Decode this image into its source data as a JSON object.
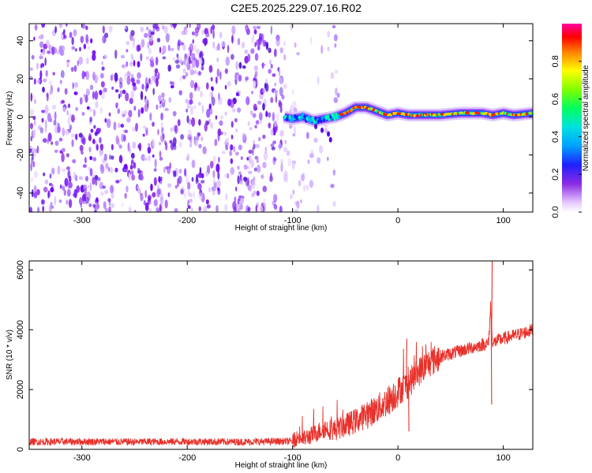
{
  "title": "C2E5.2025.229.07.16.R02",
  "chart_data": [
    {
      "type": "heatmap",
      "xlabel": "Height of straight line (km)",
      "ylabel": "Frequency (Hz)",
      "xlim": [
        -350,
        128
      ],
      "ylim": [
        -50,
        49
      ],
      "x_ticks": [
        -300,
        -200,
        -100,
        0,
        100
      ],
      "y_ticks": [
        -40,
        -20,
        0,
        20,
        40
      ],
      "colorbar": {
        "label": "Normalized spectral amplitude",
        "range": [
          0,
          1
        ],
        "ticks": [
          "0.0",
          "0.2",
          "0.4",
          "0.6",
          "0.8"
        ]
      },
      "regions": [
        {
          "x_range": [
            -350,
            -108
          ],
          "content": "broadband noise (low amplitude, violet)"
        },
        {
          "x_range": [
            -108,
            -55
          ],
          "content": "noise fading; signal appears near 0 Hz"
        },
        {
          "x_range": [
            -55,
            128
          ],
          "content": "narrow line near 0 Hz, high amplitude"
        }
      ],
      "signal_ridge": {
        "x": [
          -108,
          -100,
          -90,
          -80,
          -70,
          -60,
          -50,
          -40,
          -30,
          -20,
          -10,
          0,
          10,
          20,
          40,
          60,
          80,
          90,
          100,
          110,
          128
        ],
        "freq": [
          0,
          -1,
          0,
          -2,
          -1,
          0,
          2,
          5,
          5,
          3,
          1,
          2,
          1,
          1,
          1,
          2,
          2,
          1,
          2,
          1,
          2
        ]
      }
    },
    {
      "type": "line",
      "xlabel": "Height of straight line (km)",
      "ylabel": "SNR (10 * v/v)",
      "xlim": [
        -350,
        128
      ],
      "ylim": [
        0,
        6300
      ],
      "x_ticks": [
        -300,
        -200,
        -100,
        0,
        100
      ],
      "y_ticks": [
        0,
        2000,
        4000,
        6000
      ],
      "color": "#e8302a",
      "x": [
        -350,
        -300,
        -250,
        -200,
        -150,
        -100,
        -95,
        -90,
        -80,
        -70,
        -60,
        -50,
        -40,
        -30,
        -20,
        -10,
        0,
        10,
        20,
        30,
        40,
        50,
        60,
        70,
        80,
        86,
        88,
        90,
        92,
        95,
        100,
        110,
        120,
        128
      ],
      "y": [
        250,
        260,
        250,
        260,
        250,
        270,
        400,
        350,
        500,
        700,
        650,
        800,
        950,
        1150,
        1350,
        1600,
        1950,
        2200,
        2600,
        2900,
        3100,
        3200,
        3300,
        3400,
        3500,
        3550,
        4800,
        3500,
        3600,
        3650,
        3700,
        3800,
        3900,
        4000
      ],
      "spikes": [
        {
          "x": 8,
          "y": 3700
        },
        {
          "x": 10,
          "y": 600
        },
        {
          "x": 88,
          "y": 4800
        },
        {
          "x": 89,
          "y": 6300
        },
        {
          "x": 88.5,
          "y": 1500
        }
      ]
    }
  ]
}
